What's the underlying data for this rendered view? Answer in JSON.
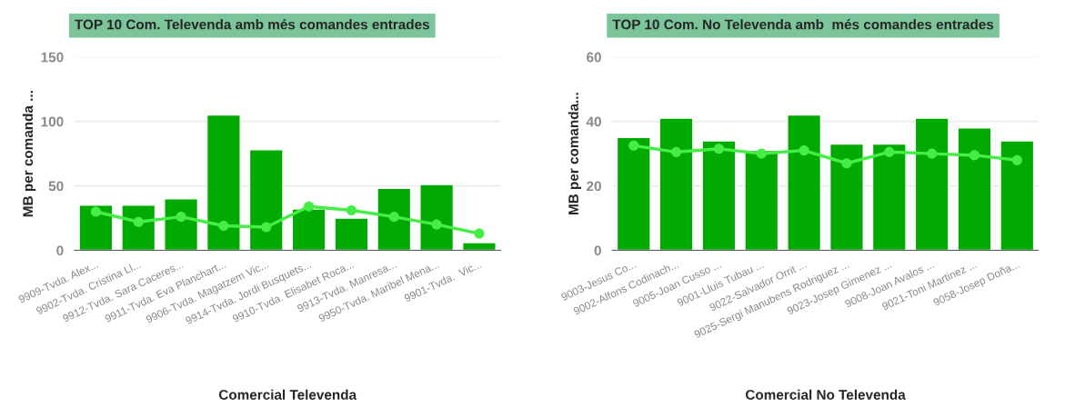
{
  "chart_data": [
    {
      "type": "bar",
      "title": "TOP 10 Com. Televenda amb més comandes entrades",
      "xlabel": "Comercial Televenda",
      "ylabel": "MB per comanda ...",
      "categories": [
        "9909-Tvda. Alex...",
        "9902-Tvda. Cristina Ll...",
        "9912-Tvda. Sara Caceres...",
        "9911-Tvda. Eva Planchart...",
        "9906-Tvda. Magatzem Vic...",
        "9914-Tvda. Jordi Busquets...",
        "9910-Tvda. Elisabet Roca...",
        "9913-Tvda. Manresa...",
        "9950-Tvda. Maribel Mena...",
        "9901-Tvda.  Vic..."
      ],
      "series": [
        {
          "color": "#00aa00",
          "values": [
            35,
            35,
            40,
            105,
            78,
            32,
            25,
            48,
            51,
            6
          ]
        },
        {
          "type": "line",
          "color": "#44ee44",
          "marker": "circle",
          "values": [
            30,
            22,
            26,
            19,
            18,
            34,
            31,
            26,
            20,
            13
          ]
        }
      ],
      "ylim": [
        0,
        150
      ],
      "yticks": [
        0,
        50,
        100,
        150
      ],
      "grid": "y"
    },
    {
      "type": "bar",
      "title": "TOP 10 Com. No Televenda amb  més comandes entrades",
      "xlabel": "Comercial No Televenda",
      "ylabel": "MB per comanda...",
      "categories": [
        "9003-Jesus Co...",
        "9002-Alfons Codinach...",
        "9005-Joan Cusso ...",
        "9001-Lluis Tubau ...",
        "9022-Salvador Orrit ...",
        "9025-Sergi Manubens Rodriguez ...",
        "9023-Josep Gimenez ...",
        "9008-Joan Avalos ...",
        "9021-Toni Martinez ...",
        "9058-Josep Doña..."
      ],
      "series": [
        {
          "color": "#00aa00",
          "values": [
            35,
            41,
            34,
            31,
            42,
            33,
            33,
            41,
            38,
            34
          ]
        },
        {
          "type": "line",
          "color": "#44ee44",
          "marker": "circle",
          "values": [
            32.5,
            30.5,
            31.5,
            30,
            31,
            27,
            30.5,
            30,
            29.5,
            28
          ]
        }
      ],
      "ylim": [
        0,
        60
      ],
      "yticks": [
        0,
        20,
        40,
        60
      ],
      "grid": "y"
    }
  ]
}
